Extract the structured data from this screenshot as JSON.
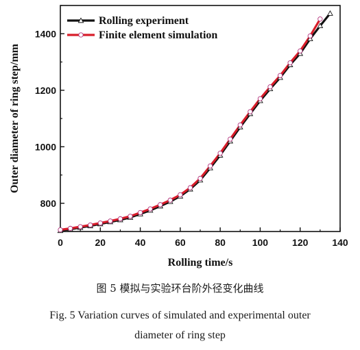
{
  "chart_data": {
    "type": "line",
    "xlabel": "Rolling time/s",
    "ylabel": "Outer diameter of ring step/mm",
    "xlim": [
      0,
      140
    ],
    "ylim": [
      700,
      1500
    ],
    "xticks": [
      0,
      20,
      40,
      60,
      80,
      100,
      120,
      140
    ],
    "yticks": [
      800,
      1000,
      1200,
      1400
    ],
    "grid": false,
    "legend_position": "top-left",
    "series": [
      {
        "name": "Rolling experiment",
        "color": "#111111",
        "marker": "triangle",
        "x": [
          0,
          5,
          10,
          15,
          20,
          25,
          30,
          35,
          40,
          45,
          50,
          55,
          60,
          65,
          70,
          75,
          80,
          85,
          90,
          95,
          100,
          105,
          110,
          115,
          120,
          125,
          130,
          135
        ],
        "y": [
          703,
          708,
          714,
          720,
          727,
          734,
          741,
          750,
          762,
          775,
          790,
          806,
          825,
          850,
          882,
          925,
          970,
          1020,
          1070,
          1117,
          1163,
          1205,
          1245,
          1290,
          1330,
          1382,
          1428,
          1472
        ]
      },
      {
        "name": "Finite element simulation",
        "color": "#d81e2a",
        "marker": "circle",
        "x": [
          0,
          5,
          10,
          15,
          20,
          25,
          30,
          35,
          40,
          45,
          50,
          55,
          60,
          65,
          70,
          75,
          80,
          85,
          90,
          95,
          100,
          105,
          110,
          115,
          120,
          125,
          130
        ],
        "y": [
          706,
          711,
          717,
          723,
          730,
          737,
          745,
          754,
          767,
          780,
          795,
          811,
          830,
          855,
          888,
          932,
          977,
          1027,
          1077,
          1124,
          1170,
          1212,
          1252,
          1297,
          1339,
          1392,
          1452
        ]
      }
    ]
  },
  "captions": {
    "cn": "图 5   模拟与实验环台阶外径变化曲线",
    "en_line1": "Fig. 5   Variation curves of simulated and experimental outer",
    "en_line2": "diameter of ring step"
  }
}
